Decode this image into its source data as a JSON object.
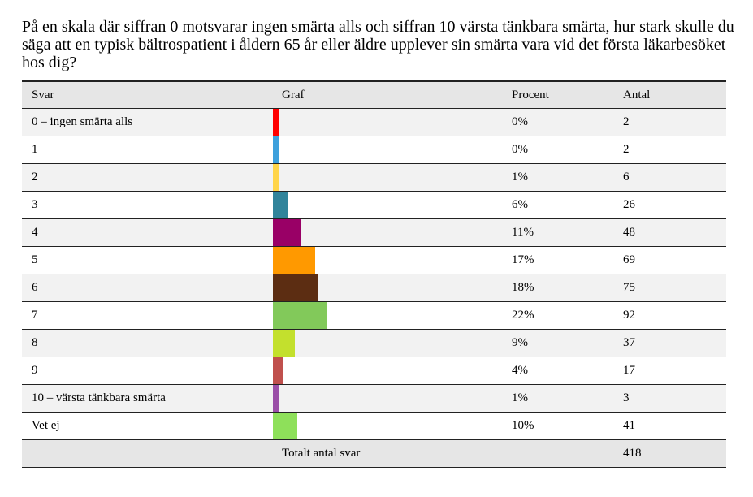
{
  "question": "På en skala där siffran 0 motsvarar ingen smärta alls och siffran 10 värsta tänkbara smärta, hur stark skulle du säga att en typisk bältrospatient i åldern 65 år eller äldre upplever sin smärta vara vid det första läkarbesöket hos dig?",
  "headers": {
    "svar": "Svar",
    "graf": "Graf",
    "procent": "Procent",
    "antal": "Antal"
  },
  "rows": [
    {
      "svar": "0 – ingen smärta alls",
      "procent": "0%",
      "antal": "2"
    },
    {
      "svar": "1",
      "procent": "0%",
      "antal": "2"
    },
    {
      "svar": "2",
      "procent": "1%",
      "antal": "6"
    },
    {
      "svar": "3",
      "procent": "6%",
      "antal": "26"
    },
    {
      "svar": "4",
      "procent": "11%",
      "antal": "48"
    },
    {
      "svar": "5",
      "procent": "17%",
      "antal": "69"
    },
    {
      "svar": "6",
      "procent": "18%",
      "antal": "75"
    },
    {
      "svar": "7",
      "procent": "22%",
      "antal": "92"
    },
    {
      "svar": "8",
      "procent": "9%",
      "antal": "37"
    },
    {
      "svar": "9",
      "procent": "4%",
      "antal": "17"
    },
    {
      "svar": "10 – värsta tänkbara smärta",
      "procent": "1%",
      "antal": "3"
    },
    {
      "svar": "Vet ej",
      "procent": "10%",
      "antal": "41"
    }
  ],
  "total": {
    "label": "Totalt antal svar",
    "value": "418"
  },
  "chart_data": {
    "type": "bar",
    "orientation": "horizontal",
    "categories": [
      "0 – ingen smärta alls",
      "1",
      "2",
      "3",
      "4",
      "5",
      "6",
      "7",
      "8",
      "9",
      "10 – värsta tänkbara smärta",
      "Vet ej"
    ],
    "values": [
      0,
      0,
      1,
      6,
      11,
      17,
      18,
      22,
      9,
      4,
      1,
      10
    ],
    "counts": [
      2,
      2,
      6,
      26,
      48,
      69,
      75,
      92,
      37,
      17,
      3,
      41
    ],
    "colors": [
      "#ff0000",
      "#3da0dc",
      "#ffd54a",
      "#31849b",
      "#990066",
      "#ff9900",
      "#5c2d12",
      "#82c95a",
      "#c3e02d",
      "#c0504d",
      "#9b4fa8",
      "#8ee05a"
    ],
    "unit": "%"
  }
}
